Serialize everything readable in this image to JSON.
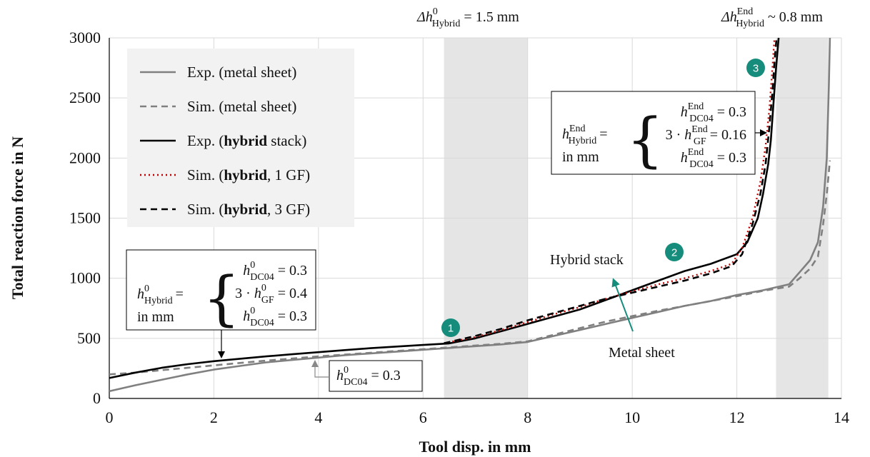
{
  "chart_data": {
    "type": "line",
    "xlabel": "Tool disp. in mm",
    "ylabel": "Total reaction force in N",
    "xlim": [
      0,
      14
    ],
    "ylim": [
      0,
      3000
    ],
    "xticks": [
      "0",
      "2",
      "4",
      "6",
      "8",
      "10",
      "12",
      "14"
    ],
    "yticks": [
      "0",
      "500",
      "1000",
      "1500",
      "2000",
      "2500",
      "3000"
    ],
    "grid": true,
    "legend_position": "top-left",
    "shaded_bands": [
      [
        6.4,
        8.0
      ],
      [
        12.75,
        13.75
      ]
    ],
    "series": [
      {
        "name": "Exp. (metal sheet)",
        "color": "#808080",
        "dash": "solid",
        "x": [
          0,
          0.5,
          1,
          1.5,
          2,
          2.5,
          3,
          3.5,
          4,
          4.5,
          5,
          5.5,
          6,
          6.5,
          7,
          7.5,
          8,
          8.5,
          9,
          9.5,
          10,
          10.5,
          11,
          11.5,
          12,
          12.5,
          13,
          13.2,
          13.4,
          13.55,
          13.65,
          13.72,
          13.76,
          13.78
        ],
        "y": [
          60,
          110,
          155,
          200,
          240,
          270,
          300,
          320,
          340,
          360,
          375,
          390,
          405,
          420,
          435,
          450,
          470,
          520,
          570,
          620,
          670,
          720,
          770,
          810,
          860,
          900,
          950,
          1050,
          1150,
          1300,
          1600,
          2000,
          2600,
          3000
        ]
      },
      {
        "name": "Sim. (metal sheet)",
        "color": "#808080",
        "dash": "dashed",
        "x": [
          0,
          0.5,
          1,
          1.5,
          2,
          2.5,
          3,
          3.5,
          4,
          4.5,
          5,
          5.5,
          6,
          6.5,
          7,
          7.5,
          8,
          8.5,
          9,
          9.5,
          10,
          10.5,
          11,
          11.5,
          12,
          12.5,
          13,
          13.2,
          13.4,
          13.55,
          13.65,
          13.72,
          13.78
        ],
        "y": [
          200,
          215,
          235,
          255,
          275,
          295,
          315,
          332,
          350,
          365,
          380,
          395,
          410,
          425,
          440,
          455,
          475,
          530,
          585,
          640,
          685,
          730,
          770,
          810,
          850,
          895,
          930,
          1000,
          1080,
          1180,
          1450,
          1700,
          1980
        ]
      },
      {
        "name": "Exp. (hybrid stack)",
        "color": "#000000",
        "dash": "solid",
        "x": [
          0,
          0.5,
          1,
          1.5,
          2,
          2.5,
          3,
          3.5,
          4,
          4.5,
          5,
          5.5,
          6,
          6.5,
          7,
          7.5,
          8,
          8.5,
          9,
          9.5,
          10,
          10.5,
          11,
          11.5,
          12,
          12.2,
          12.4,
          12.5,
          12.6,
          12.65,
          12.7,
          12.75,
          12.8
        ],
        "y": [
          170,
          215,
          255,
          285,
          310,
          330,
          350,
          368,
          385,
          402,
          418,
          432,
          445,
          458,
          500,
          560,
          620,
          680,
          740,
          820,
          900,
          980,
          1060,
          1120,
          1200,
          1300,
          1500,
          1700,
          1950,
          2150,
          2450,
          2750,
          3000
        ]
      },
      {
        "name": "Sim. (hybrid, 1 GF)",
        "color": "#c00000",
        "dash": "dotted",
        "x": [
          6.4,
          7,
          7.5,
          8,
          8.5,
          9,
          9.5,
          10,
          10.5,
          11,
          11.5,
          11.9,
          12.1,
          12.3,
          12.45,
          12.55,
          12.62,
          12.68,
          12.72
        ],
        "y": [
          460,
          510,
          570,
          635,
          700,
          760,
          830,
          890,
          950,
          1000,
          1060,
          1120,
          1250,
          1500,
          1800,
          2100,
          2400,
          2750,
          3000
        ]
      },
      {
        "name": "Sim. (hybrid, 3 GF)",
        "color": "#000000",
        "dash": "dashed",
        "x": [
          6.4,
          7,
          7.5,
          8,
          8.5,
          9,
          9.5,
          10,
          10.5,
          11,
          11.5,
          11.9,
          12.1,
          12.3,
          12.45,
          12.55,
          12.62,
          12.68,
          12.72,
          12.76
        ],
        "y": [
          460,
          520,
          580,
          650,
          710,
          770,
          830,
          880,
          930,
          980,
          1040,
          1100,
          1200,
          1450,
          1700,
          1950,
          2250,
          2550,
          2800,
          3000
        ]
      }
    ],
    "annotations": {
      "top_left_label": "Δh",
      "top_left_sup": "0",
      "top_left_sub": "Hybrid",
      "top_left_value": " = 1.5 mm",
      "top_right_label": "Δh",
      "top_right_sup": "End",
      "top_right_sub": "Hybrid",
      "top_right_value": " ~ 0.8 mm",
      "hybrid_stack": "Hybrid stack",
      "metal_sheet": "Metal sheet",
      "badges": [
        "1",
        "2",
        "3"
      ],
      "badge_color": "#168c7c",
      "dc04_box": {
        "var": "h",
        "sup": "0",
        "sub": "DC04",
        "value": " = 0.3"
      },
      "initial_box": {
        "lhs_var": "h",
        "lhs_sup": "0",
        "lhs_sub": "Hybrid",
        "eq": "=",
        "unit": "in mm",
        "rows": [
          {
            "prefix": "",
            "var": "h",
            "sup": "0",
            "sub": "DC04",
            "value": " = 0.3"
          },
          {
            "prefix": "3 · ",
            "var": "h",
            "sup": "0",
            "sub": "GF",
            "value": " = 0.4"
          },
          {
            "prefix": "",
            "var": "h",
            "sup": "0",
            "sub": "DC04",
            "value": " = 0.3"
          }
        ]
      },
      "end_box": {
        "lhs_var": "h",
        "lhs_sup": "End",
        "lhs_sub": "Hybrid",
        "eq": "=",
        "unit": "in mm",
        "rows": [
          {
            "prefix": "",
            "var": "h",
            "sup": "End",
            "sub": "DC04",
            "value": " = 0.3"
          },
          {
            "prefix": "3 · ",
            "var": "h",
            "sup": "End",
            "sub": "GF",
            "value": " = 0.16"
          },
          {
            "prefix": "",
            "var": "h",
            "sup": "End",
            "sub": "DC04",
            "value": " = 0.3"
          }
        ]
      }
    },
    "legend": [
      {
        "text_pre": "Exp. (metal sheet)",
        "bold": "",
        "text_post": ""
      },
      {
        "text_pre": "Sim. (metal sheet)",
        "bold": "",
        "text_post": ""
      },
      {
        "text_pre": "Exp. (",
        "bold": "hybrid",
        "text_post": " stack)"
      },
      {
        "text_pre": "Sim. (",
        "bold": "hybrid",
        "text_post": ", 1 GF)"
      },
      {
        "text_pre": "Sim. (",
        "bold": "hybrid",
        "text_post": ", 3 GF)"
      }
    ]
  }
}
